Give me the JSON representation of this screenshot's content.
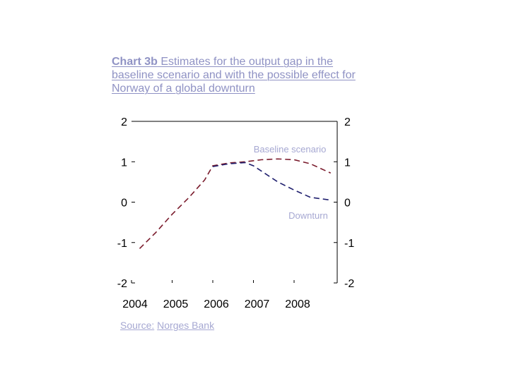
{
  "title": {
    "prefix": "Chart 3b",
    "text": " Estimates for the output gap in the baseline scenario and with the possible effect for Norway of a global downturn"
  },
  "source": {
    "label": "Source:",
    "name": "Norges Bank"
  },
  "chart_data": {
    "type": "line",
    "title": "Chart 3b Estimates for the output gap in the baseline scenario and with the possible effect for Norway of a global downturn",
    "xlabel": "",
    "ylabel": "",
    "x_ticks": [
      "2004",
      "2005",
      "2006",
      "2007",
      "2008"
    ],
    "xlim": [
      2004,
      2009
    ],
    "ylim": [
      -2,
      2
    ],
    "y_ticks": [
      2,
      1,
      0,
      -1,
      -2
    ],
    "grid": false,
    "legend": "inline labels",
    "series": [
      {
        "name": "Baseline scenario",
        "color": "#7a1b2c",
        "dash": "dashed",
        "x": [
          2004.2,
          2004.6,
          2005.0,
          2005.4,
          2005.8,
          2006.0,
          2006.4,
          2006.8,
          2007.2,
          2007.6,
          2008.0,
          2008.4,
          2008.9
        ],
        "y": [
          -1.15,
          -0.75,
          -0.3,
          0.1,
          0.55,
          0.9,
          0.97,
          1.0,
          1.05,
          1.07,
          1.05,
          0.95,
          0.72
        ]
      },
      {
        "name": "Downturn",
        "color": "#1f1f6e",
        "dash": "dashed",
        "x": [
          2006.0,
          2006.4,
          2006.8,
          2007.0,
          2007.3,
          2007.6,
          2008.0,
          2008.4,
          2008.9
        ],
        "y": [
          0.88,
          0.95,
          0.98,
          0.9,
          0.7,
          0.5,
          0.3,
          0.12,
          0.05
        ]
      }
    ]
  }
}
